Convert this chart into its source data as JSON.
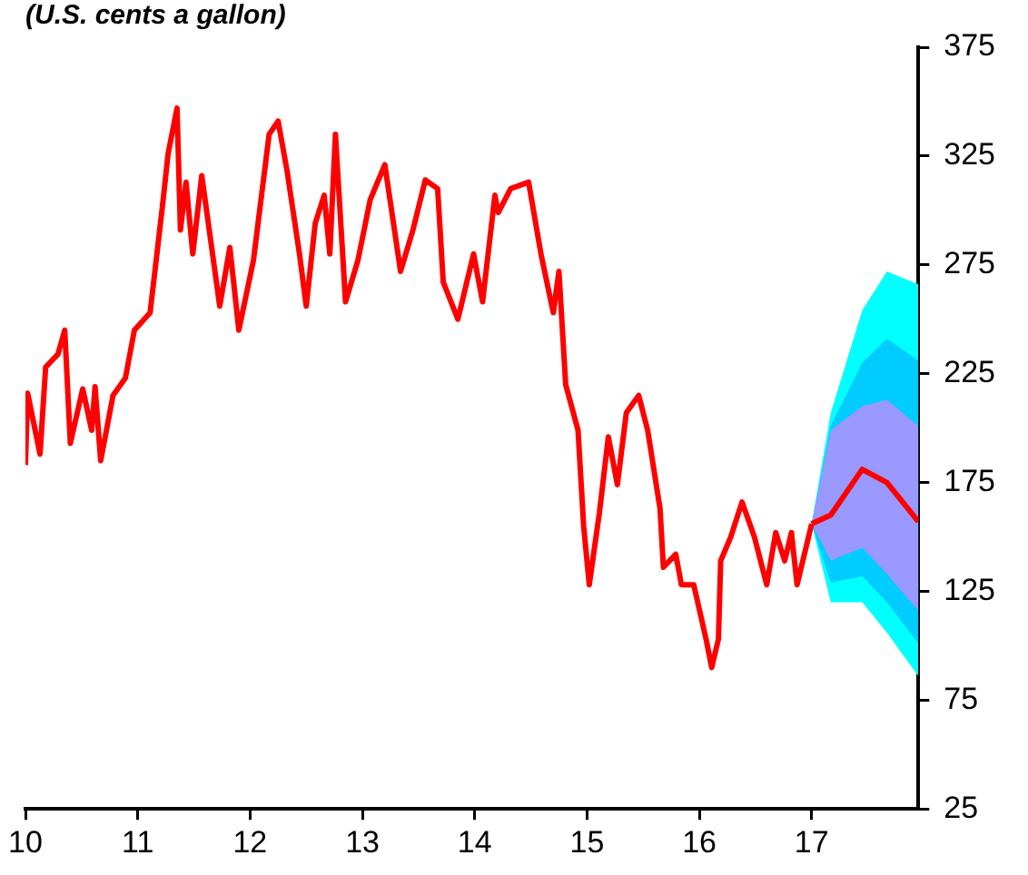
{
  "chart_data": {
    "type": "line",
    "title": "(U.S. cents a gallon)",
    "xlim": [
      10,
      17.95
    ],
    "xticks": [
      10,
      11,
      12,
      13,
      14,
      15,
      16,
      17
    ],
    "ylim": [
      25,
      375
    ],
    "yticks": [
      25,
      75,
      125,
      175,
      225,
      275,
      325,
      375
    ],
    "grid": false,
    "legend": false,
    "marker": "none",
    "line_style": "solid",
    "series": [
      {
        "type": "line",
        "color": "#00ffff",
        "x": [
          17,
          17.17,
          17.45,
          17.67,
          17.95
        ],
        "values": [
          null,
          null,
          null,
          null,
          null
        ],
        "lower": [
          156,
          120,
          120,
          106,
          86
        ],
        "upper": [
          156,
          207,
          254,
          272,
          266
        ]
      },
      {
        "type": "line",
        "color": "#00ccff",
        "x": [
          17,
          17.17,
          17.45,
          17.67,
          17.95
        ],
        "values": [
          null,
          null,
          null,
          null,
          null
        ],
        "lower": [
          156,
          129,
          132,
          120,
          101
        ],
        "upper": [
          156,
          201,
          230,
          241,
          231
        ]
      },
      {
        "type": "line",
        "color": "#9999ff",
        "x": [
          17,
          17.17,
          17.45,
          17.67,
          17.95
        ],
        "values": [
          null,
          null,
          null,
          null,
          null
        ],
        "lower": [
          156,
          139,
          145,
          133,
          116
        ],
        "upper": [
          156,
          199,
          210,
          213,
          201
        ]
      },
      {
        "type": "line",
        "color": "#ff0000",
        "x": [
          10,
          10.02,
          10.13,
          10.18,
          10.29,
          10.35,
          10.4,
          10.51,
          10.59,
          10.62,
          10.67,
          10.78,
          10.89,
          10.97,
          11.11,
          11.22,
          11.27,
          11.35,
          11.38,
          11.43,
          11.49,
          11.57,
          11.73,
          11.82,
          11.9,
          12.03,
          12.17,
          12.25,
          12.33,
          12.44,
          12.5,
          12.58,
          12.66,
          12.71,
          12.76,
          12.85,
          12.96,
          13.07,
          13.2,
          13.34,
          13.45,
          13.56,
          13.67,
          13.72,
          13.85,
          13.99,
          14.07,
          14.18,
          14.21,
          14.32,
          14.48,
          14.59,
          14.7,
          14.75,
          14.81,
          14.92,
          14.97,
          15.02,
          15.11,
          15.19,
          15.27,
          15.35,
          15.46,
          15.54,
          15.65,
          15.68,
          15.79,
          15.84,
          15.95,
          16.06,
          16.11,
          16.17,
          16.19,
          16.28,
          16.38,
          16.49,
          16.6,
          16.68,
          16.76,
          16.82,
          16.87,
          17
        ],
        "values": [
          183,
          216,
          188,
          228,
          234,
          245,
          193,
          218,
          199,
          219,
          185,
          215,
          223,
          245,
          253,
          302,
          326,
          347,
          291,
          313,
          280,
          316,
          256,
          283,
          245,
          277,
          335,
          341,
          318,
          280,
          256,
          294,
          307,
          280,
          335,
          258,
          277,
          305,
          321,
          272,
          291,
          314,
          310,
          267,
          250,
          280,
          258,
          307,
          299,
          310,
          313,
          280,
          253,
          272,
          220,
          199,
          155,
          128,
          161,
          196,
          174,
          207,
          215,
          199,
          163,
          136,
          142,
          128,
          128,
          103,
          90,
          103,
          139,
          150,
          166,
          150,
          128,
          152,
          139,
          152,
          128,
          156
        ]
      },
      {
        "type": "line",
        "color": "#ff0000",
        "x": [
          17,
          17.17,
          17.45,
          17.67,
          17.95
        ],
        "values": [
          156,
          160,
          181,
          175,
          157
        ]
      }
    ]
  }
}
